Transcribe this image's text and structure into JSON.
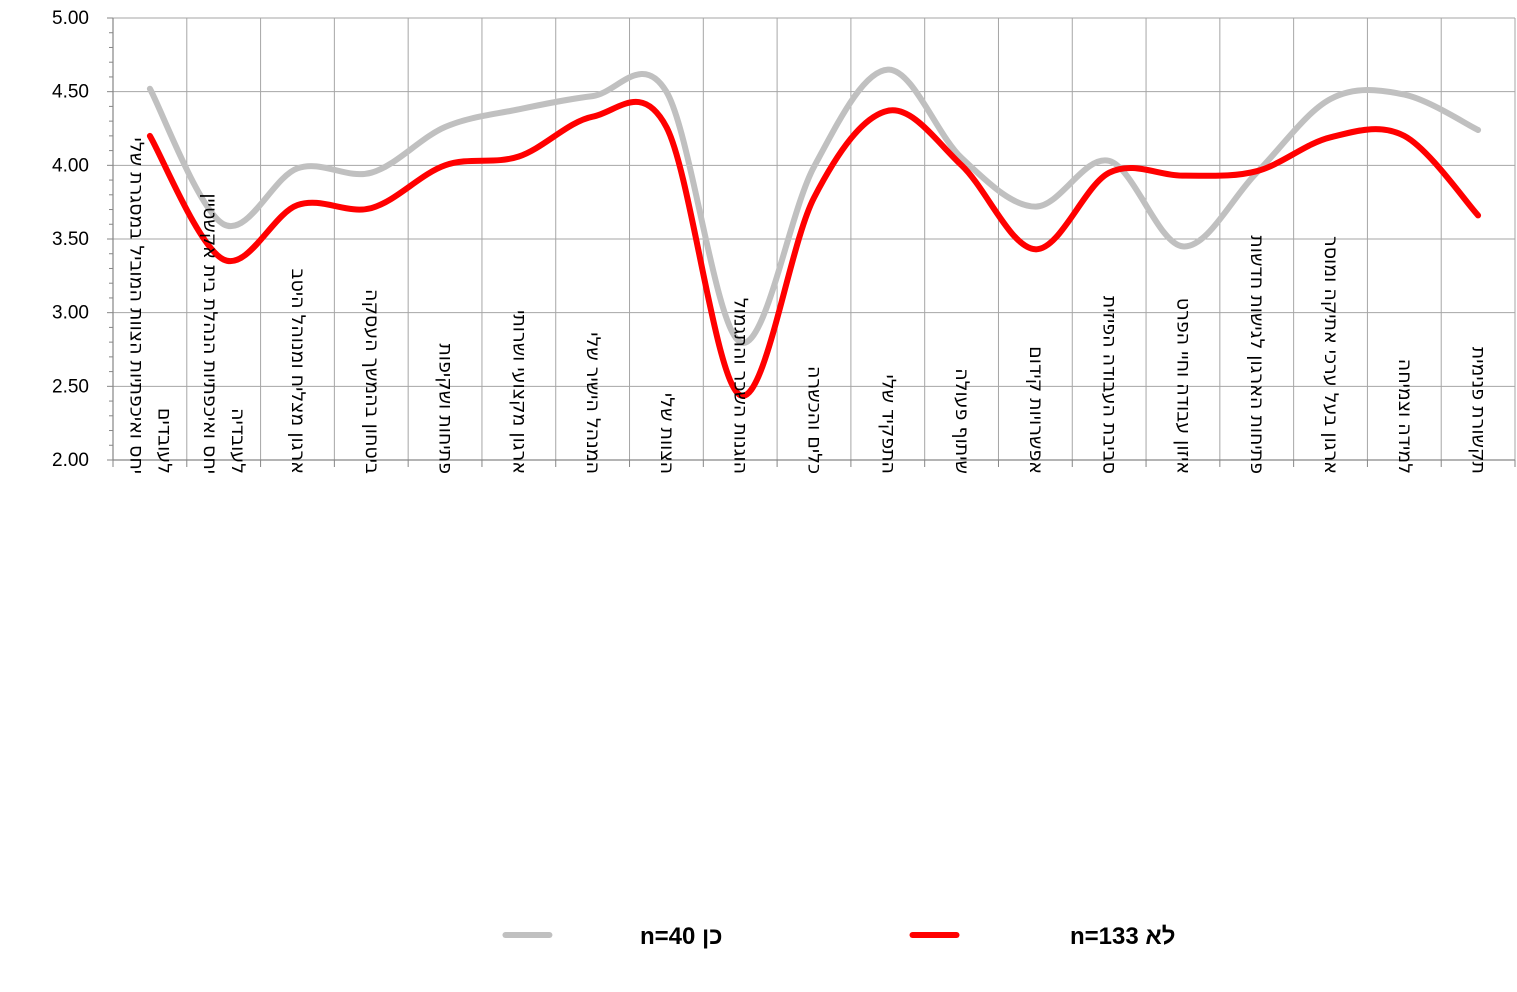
{
  "chart_data": {
    "type": "line",
    "title": "",
    "xlabel": "",
    "ylabel": "",
    "ylim": [
      2.0,
      5.0
    ],
    "y_ticks": [
      "2.00",
      "2.50",
      "3.00",
      "3.50",
      "4.00",
      "4.50",
      "5.00"
    ],
    "grid": true,
    "smooth": true,
    "legend_position": "bottom",
    "categories": [
      [
        "יחס ואיכפתיות הצוות המוביל במסגרת שלי",
        "לעובדים"
      ],
      [
        "יחס ואיכפתיות הנהלת בית אקשטיין",
        "לעובדיה"
      ],
      [
        "ארגון מצליח ומנוהל היטב"
      ],
      [
        "ביטחון בהמשך העסקה"
      ],
      [
        "פתיחות ושקיפות"
      ],
      [
        "ארגון מקצועי ושרותי"
      ],
      [
        "המנהל הישיר שלי"
      ],
      [
        "הצוות שלי"
      ],
      [
        "הוגנות השכר והתגמול"
      ],
      [
        "כלים והכשרה"
      ],
      [
        "התפקיד שלי"
      ],
      [
        "שיתוף פעולה"
      ],
      [
        "אפשרויות קידום"
      ],
      [
        "סביבת העבודה הפיזית"
      ],
      [
        "איזון עבודה וחיי הפרט"
      ],
      [
        "פתיחות הארגון לגישות חדשות"
      ],
      [
        "ארגון בעל ערכי אתיקה ומוסר"
      ],
      [
        "למידה וצמיחה"
      ],
      [
        "תקשורת פנימית"
      ]
    ],
    "series": [
      {
        "name": "כן n=40",
        "color": "#c0c0c0",
        "values": [
          4.52,
          3.6,
          3.98,
          3.95,
          4.26,
          4.38,
          4.47,
          4.5,
          2.8,
          3.99,
          4.65,
          4.05,
          3.72,
          4.03,
          3.45,
          3.95,
          4.45,
          4.48,
          4.24
        ]
      },
      {
        "name": "לא n=133",
        "color": "#ff0000",
        "values": [
          4.2,
          3.36,
          3.73,
          3.71,
          4.0,
          4.06,
          4.33,
          4.26,
          2.44,
          3.78,
          4.37,
          4.0,
          3.43,
          3.95,
          3.93,
          3.96,
          4.19,
          4.2,
          3.66
        ]
      }
    ]
  }
}
